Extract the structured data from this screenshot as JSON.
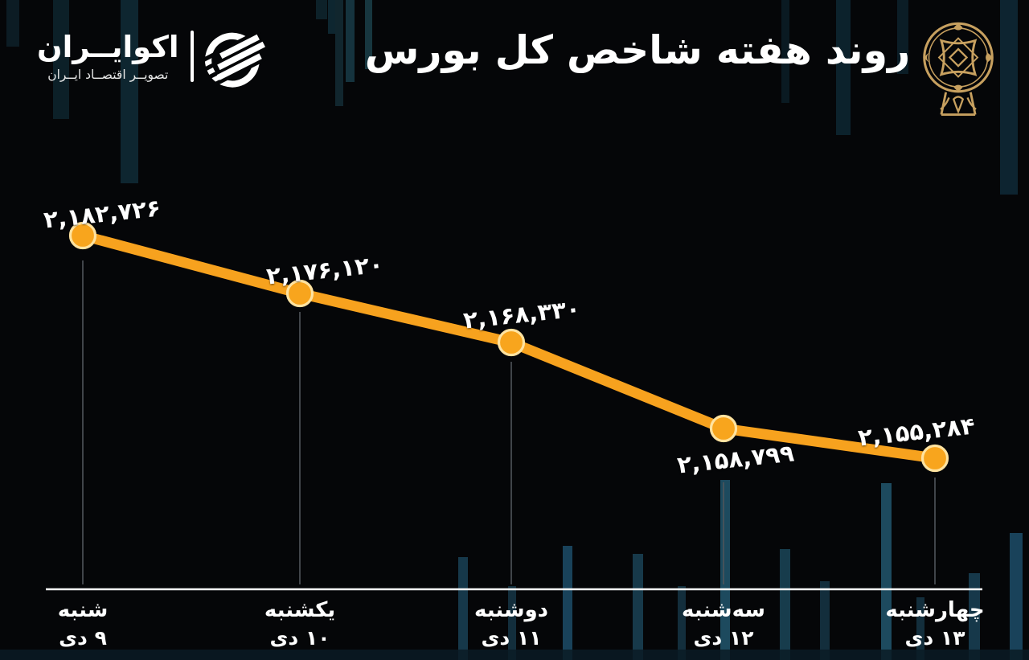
{
  "header": {
    "title": "روند هفته شاخص کل بورس"
  },
  "logo": {
    "name": "اکوایــران",
    "tagline": "تصویــر اقتصــاد ایــران"
  },
  "icons": {
    "ecoiran_logo": "ecoiran-striped-globe-icon",
    "emblem": "tehran-bourse-gold-emblem-icon"
  },
  "colors": {
    "background": "#050608",
    "line_orange": "#F7A21E",
    "marker_fill": "#F8A51D",
    "marker_ring": "#FFE3A0",
    "axis_white": "#F5F5F5",
    "dropline_gray": "#50555A",
    "emblem_gold": "#C7A05F",
    "text_white": "#FFFFFF"
  },
  "chart_data": {
    "type": "line",
    "title": "روند هفته شاخص کل بورس",
    "ylabel": "",
    "xlabel": "",
    "ylim": [
      2150000,
      2186000
    ],
    "grid": false,
    "legend": "none",
    "line_color": "#F7A21E",
    "categories": [
      "شنبه ۹ دی",
      "یکشنبه ۱۰ دی",
      "دوشنبه ۱۱ دی",
      "سه‌شنبه ۱۲ دی",
      "چهارشنبه ۱۳ دی"
    ],
    "values": [
      2182726,
      2176120,
      2168330,
      2158799,
      2155284
    ],
    "points": [
      {
        "day": "شنبه",
        "date": "۹ دی",
        "value": 2182726,
        "label": "۲,۱۸۲,۷۲۶"
      },
      {
        "day": "یکشنبه",
        "date": "۱۰ دی",
        "value": 2176120,
        "label": "۲,۱۷۶,۱۲۰"
      },
      {
        "day": "دوشنبه",
        "date": "۱۱ دی",
        "value": 2168330,
        "label": "۲,۱۶۸,۳۳۰"
      },
      {
        "day": "سه‌شنبه",
        "date": "۱۲ دی",
        "value": 2158799,
        "label": "۲,۱۵۸,۷۹۹"
      },
      {
        "day": "چهارشنبه",
        "date": "۱۳ دی",
        "value": 2155284,
        "label": "۲,۱۵۵,۲۸۴"
      }
    ]
  }
}
